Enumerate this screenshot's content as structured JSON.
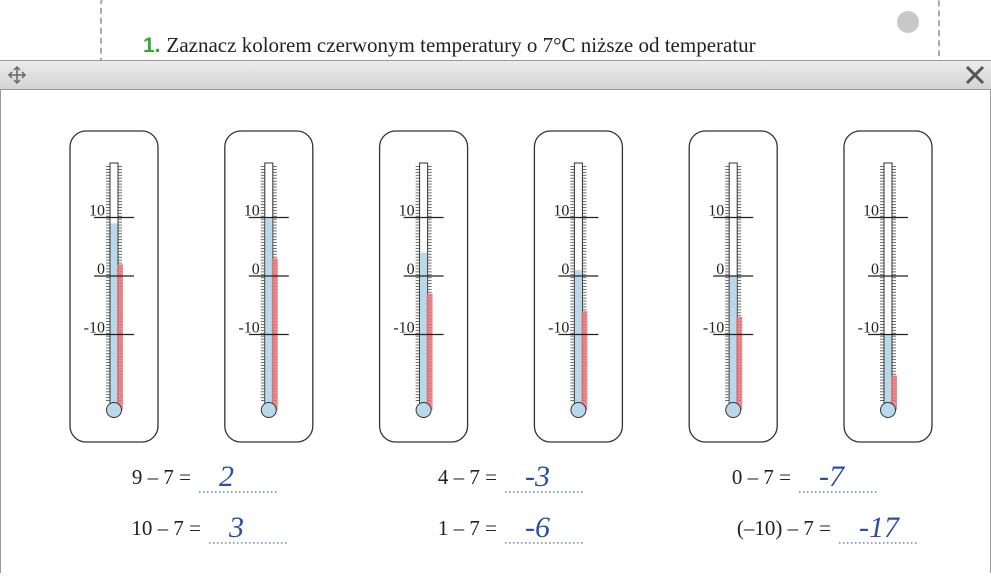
{
  "header": {
    "number": "1.",
    "text": "Zaznacz kolorem czerwonym temperatury o 7°C niższe od temperatur"
  },
  "thermometers": [
    {
      "scale": [
        10,
        0,
        -10
      ],
      "temperature": 9,
      "marked": 2
    },
    {
      "scale": [
        10,
        0,
        -10
      ],
      "temperature": 10,
      "marked": 3
    },
    {
      "scale": [
        10,
        0,
        -10
      ],
      "temperature": 4,
      "marked": -3
    },
    {
      "scale": [
        10,
        0,
        -10
      ],
      "temperature": 1,
      "marked": -6
    },
    {
      "scale": [
        10,
        0,
        -10
      ],
      "temperature": 0,
      "marked": -7
    },
    {
      "scale": [
        10,
        0,
        -10
      ],
      "temperature": -10,
      "marked": -17
    }
  ],
  "equations": [
    {
      "expression": "9 – 7 =",
      "answer": "2"
    },
    {
      "expression": "4 – 7 =",
      "answer": "-3"
    },
    {
      "expression": "0 – 7 =",
      "answer": "-7"
    },
    {
      "expression": "10 – 7 =",
      "answer": "3"
    },
    {
      "expression": "1 – 7 =",
      "answer": "-6"
    },
    {
      "expression": "(–10) – 7 =",
      "answer": "-17"
    }
  ]
}
